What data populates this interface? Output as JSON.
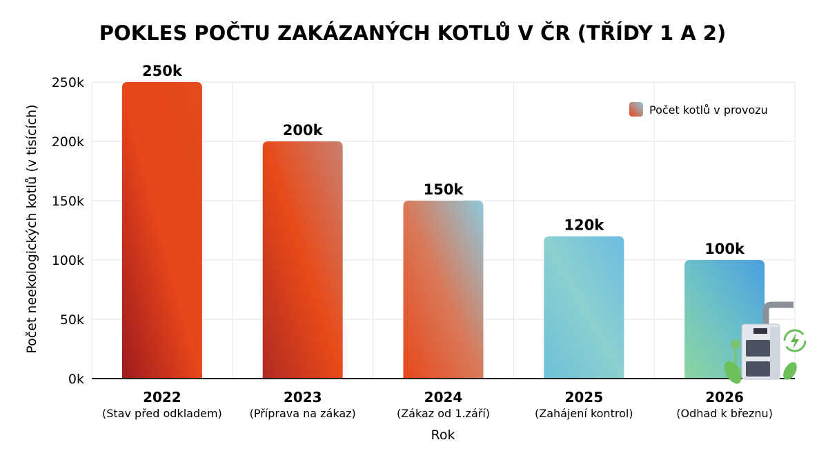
{
  "chart_data": {
    "type": "bar",
    "title": "POKLES POČTU ZAKÁZANÝCH KOTLŮ V ČR (TŘÍDY 1 A 2)",
    "xlabel": "Rok",
    "ylabel": "Počet neekologických kotlů (v tisících)",
    "ylim": [
      0,
      250
    ],
    "yticks": [
      0,
      50,
      100,
      150,
      200,
      250
    ],
    "ytick_labels": [
      "0k",
      "50k",
      "100k",
      "150k",
      "200k",
      "250k"
    ],
    "grid": true,
    "legend": {
      "position": "top-right",
      "entries": [
        "Počet kotlů v provozu"
      ]
    },
    "categories": [
      "2022",
      "2023",
      "2024",
      "2025",
      "2026"
    ],
    "sublabels": [
      "(Stav před odkladem)",
      "(Příprava na zákaz)",
      "(Zákaz od 1.září)",
      "(Zahájení kontrol)",
      "(Odhad k březnu)"
    ],
    "series": [
      {
        "name": "Počet kotlů v provozu",
        "values": [
          250,
          200,
          150,
          120,
          100
        ]
      }
    ],
    "data_labels": [
      "250k",
      "200k",
      "150k",
      "120k",
      "100k"
    ],
    "colors": {
      "bar_gradients": [
        [
          "#9e1a1e",
          "#e8471a",
          "#e24a1c"
        ],
        [
          "#b02a22",
          "#e84a18",
          "#c98070"
        ],
        [
          "#e8471a",
          "#d87a5a",
          "#8ec8dc"
        ],
        [
          "#6cc0d8",
          "#8cd0d0",
          "#6cbce0"
        ],
        [
          "#8cd6a0",
          "#6cc0c8",
          "#4aa0e0"
        ]
      ]
    }
  }
}
